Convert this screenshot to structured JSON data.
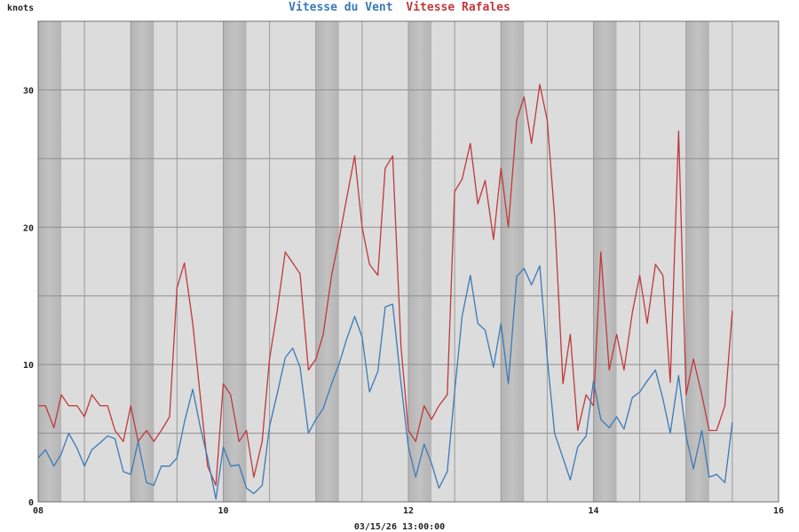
{
  "chart_data": {
    "type": "line",
    "title_parts": [
      {
        "text": "Vitesse du Vent",
        "color": "#3a7ab8"
      },
      {
        "text": "Vitesse Rafales",
        "color": "#c0393b"
      }
    ],
    "ylabel": "knots",
    "xlabel": "03/15/26 13:00:00",
    "xlim": [
      8,
      16
    ],
    "ylim": [
      0,
      35
    ],
    "xticks": [
      {
        "value": 8,
        "label": "08"
      },
      {
        "value": 10,
        "label": "10"
      },
      {
        "value": 12,
        "label": "12"
      },
      {
        "value": 14,
        "label": "14"
      },
      {
        "value": 16,
        "label": "16"
      }
    ],
    "yticks": [
      0,
      10,
      20,
      30
    ],
    "grid": true,
    "series": [
      {
        "name": "Vitesse du Vent",
        "color": "#3a7ab8",
        "x": [
          8.0,
          8.08,
          8.17,
          8.25,
          8.33,
          8.42,
          8.5,
          8.58,
          8.67,
          8.75,
          8.83,
          8.92,
          9.0,
          9.08,
          9.17,
          9.25,
          9.33,
          9.42,
          9.5,
          9.58,
          9.67,
          9.75,
          9.83,
          9.92,
          10.0,
          10.08,
          10.17,
          10.25,
          10.33,
          10.42,
          10.5,
          10.58,
          10.67,
          10.75,
          10.83,
          10.92,
          11.0,
          11.08,
          11.17,
          11.25,
          11.33,
          11.42,
          11.5,
          11.58,
          11.67,
          11.75,
          11.83,
          11.92,
          12.0,
          12.08,
          12.17,
          12.25,
          12.33,
          12.42,
          12.5,
          12.58,
          12.67,
          12.75,
          12.83,
          12.92,
          13.0,
          13.08,
          13.17,
          13.25,
          13.33,
          13.42,
          13.5,
          13.58,
          13.67,
          13.75,
          13.83,
          13.92,
          14.0,
          14.08,
          14.17,
          14.25,
          14.33,
          14.42,
          14.5,
          14.58,
          14.67,
          14.75,
          14.83,
          14.92,
          15.0,
          15.08,
          15.17,
          15.25,
          15.33,
          15.42,
          15.5
        ],
        "values": [
          3.2,
          3.8,
          2.6,
          3.5,
          5.0,
          3.9,
          2.6,
          3.8,
          4.3,
          4.8,
          4.6,
          2.2,
          2.0,
          4.4,
          1.4,
          1.2,
          2.6,
          2.6,
          3.2,
          5.8,
          8.2,
          5.5,
          3.2,
          0.2,
          4.0,
          2.6,
          2.7,
          1.0,
          0.6,
          1.2,
          5.5,
          7.8,
          10.5,
          11.2,
          9.8,
          5.0,
          6.0,
          6.8,
          8.6,
          10.0,
          11.8,
          13.5,
          12.0,
          8.0,
          9.5,
          14.2,
          14.4,
          8.6,
          4.0,
          1.8,
          4.2,
          2.8,
          1.0,
          2.2,
          8.0,
          13.5,
          16.5,
          13.0,
          12.5,
          9.8,
          13.0,
          8.6,
          16.4,
          17.0,
          15.8,
          17.2,
          10.5,
          5.0,
          3.2,
          1.6,
          4.0,
          4.8,
          8.8,
          6.0,
          5.4,
          6.2,
          5.3,
          7.6,
          8.0,
          8.8,
          9.6,
          7.5,
          5.0,
          9.2,
          4.8,
          2.4,
          5.2,
          1.8,
          2.0,
          1.4,
          5.8
        ]
      },
      {
        "name": "Vitesse Rafales",
        "color": "#c0393b",
        "x": [
          8.0,
          8.08,
          8.17,
          8.25,
          8.33,
          8.42,
          8.5,
          8.58,
          8.67,
          8.75,
          8.83,
          8.92,
          9.0,
          9.08,
          9.17,
          9.25,
          9.33,
          9.42,
          9.5,
          9.58,
          9.67,
          9.75,
          9.83,
          9.92,
          10.0,
          10.08,
          10.17,
          10.25,
          10.33,
          10.42,
          10.5,
          10.58,
          10.67,
          10.75,
          10.83,
          10.92,
          11.0,
          11.08,
          11.17,
          11.25,
          11.33,
          11.42,
          11.5,
          11.58,
          11.67,
          11.75,
          11.83,
          11.92,
          12.0,
          12.08,
          12.17,
          12.25,
          12.33,
          12.42,
          12.5,
          12.58,
          12.67,
          12.75,
          12.83,
          12.92,
          13.0,
          13.08,
          13.17,
          13.25,
          13.33,
          13.42,
          13.5,
          13.58,
          13.67,
          13.75,
          13.83,
          13.92,
          14.0,
          14.08,
          14.17,
          14.25,
          14.33,
          14.42,
          14.5,
          14.58,
          14.67,
          14.75,
          14.83,
          14.92,
          15.0,
          15.08,
          15.17,
          15.25,
          15.33,
          15.42,
          15.5
        ],
        "values": [
          7.0,
          7.0,
          5.4,
          7.8,
          7.0,
          7.0,
          6.2,
          7.8,
          7.0,
          7.0,
          5.2,
          4.4,
          7.0,
          4.4,
          5.2,
          4.4,
          5.2,
          6.2,
          15.6,
          17.4,
          13.0,
          7.8,
          2.6,
          1.2,
          8.6,
          7.8,
          4.4,
          5.2,
          1.8,
          4.4,
          10.4,
          13.8,
          18.2,
          17.4,
          16.6,
          9.6,
          10.4,
          12.2,
          16.5,
          19.1,
          22.0,
          25.2,
          20.0,
          17.3,
          16.5,
          24.3,
          25.2,
          11.3,
          5.2,
          4.4,
          7.0,
          6.0,
          7.0,
          7.8,
          22.6,
          23.5,
          26.1,
          21.7,
          23.4,
          19.1,
          24.3,
          20.0,
          27.8,
          29.5,
          26.1,
          30.4,
          27.8,
          20.8,
          8.6,
          12.2,
          5.2,
          7.8,
          7.0,
          18.2,
          9.6,
          12.2,
          9.6,
          13.8,
          16.5,
          13.0,
          17.3,
          16.5,
          8.7,
          27.0,
          7.8,
          10.4,
          7.8,
          5.2,
          5.2,
          7.0,
          13.9
        ]
      }
    ]
  }
}
